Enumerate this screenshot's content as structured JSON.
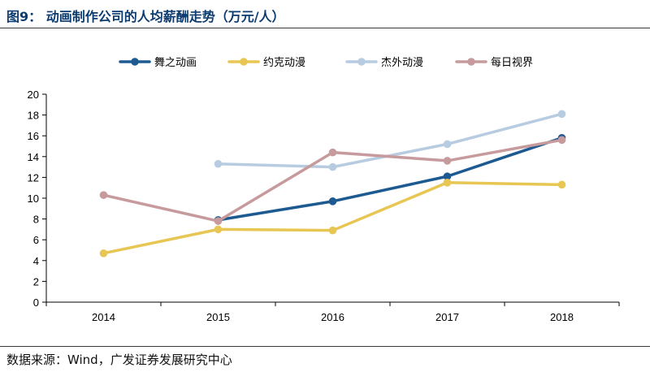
{
  "header": {
    "title": "图9：  动画制作公司的人均薪酬走势（万元/人）"
  },
  "footer": {
    "source": "数据来源：Wind，广发证券发展研究中心"
  },
  "colors": {
    "series": [
      "#1d5a91",
      "#e8c654",
      "#b7cbe1",
      "#c79b9d"
    ],
    "axis": "#000000",
    "rule": "#3a3a3a"
  },
  "chart_data": {
    "type": "line",
    "title": "",
    "xlabel": "",
    "ylabel": "",
    "categories": [
      "2014",
      "2015",
      "2016",
      "2017",
      "2018"
    ],
    "ylim": [
      0,
      20
    ],
    "yticks": [
      0,
      2,
      4,
      6,
      8,
      10,
      12,
      14,
      16,
      18,
      20
    ],
    "grid": false,
    "legend_position": "top",
    "series": [
      {
        "name": "舞之动画",
        "values": [
          null,
          7.9,
          9.7,
          12.1,
          15.8
        ]
      },
      {
        "name": "约克动漫",
        "values": [
          4.7,
          7.0,
          6.9,
          11.5,
          11.3
        ]
      },
      {
        "name": "杰外动漫",
        "values": [
          null,
          13.3,
          13.0,
          15.2,
          18.1
        ]
      },
      {
        "name": "每日视界",
        "values": [
          10.3,
          7.8,
          14.4,
          13.6,
          15.6
        ]
      }
    ]
  }
}
